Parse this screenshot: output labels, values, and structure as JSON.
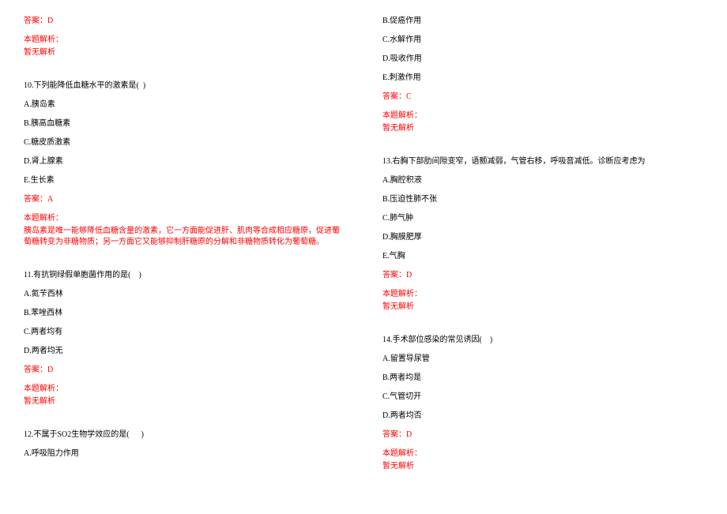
{
  "colors": {
    "text": "#000000",
    "answer": "#ff0000",
    "background": "#ffffff"
  },
  "font": {
    "family": "SimSun",
    "size_pt": 10
  },
  "col1": {
    "q9": {
      "answer": "答案：D",
      "expl_label": "本题解析：",
      "expl_body": "暂无解析"
    },
    "q10": {
      "stem": "10.下列能降低血糖水平的激素是(  )",
      "optA": "A.胰岛素",
      "optB": "B.胰高血糖素",
      "optC": "C.糖皮质激素",
      "optD": "D.肾上腺素",
      "optE": "E.生长素",
      "answer": "答案：A",
      "expl_label": "本题解析：",
      "expl_body": "胰岛素是唯一能够降低血糖含量的激素，它一方面能促进肝、肌肉等合成相应糖原，促进葡萄糖转变为非糖物质；另一方面它又能够抑制肝糖原的分解和非糖物质转化为葡萄糖。"
    },
    "q11": {
      "stem": "11.有抗铜绿假单胞菌作用的是(    )",
      "optA": "A.氮苄西林",
      "optB": "B.苯唑西林",
      "optC": "C.两者均有",
      "optD": "D.两者均无",
      "answer": "答案：D",
      "expl_label": "本题解析：",
      "expl_body": "暂无解析"
    },
    "q12": {
      "stem": "12.不属于SO2生物学效应的是(      )",
      "optA": "A.呼吸阻力作用"
    }
  },
  "col2": {
    "q12cont": {
      "optB": "B.促癌作用",
      "optC": "C.水解作用",
      "optD": "D.吸收作用",
      "optE": "E.刺激作用",
      "answer": "答案：C",
      "expl_label": "本题解析：",
      "expl_body": "暂无解析"
    },
    "q13": {
      "stem": "13.右胸下部肋间隙变窄，语颤减弱，气管右移，呼吸音减低。诊断应考虑为",
      "optA": "A.胸腔积液",
      "optB": "B.压迫性肺不张",
      "optC": "C.肺气肿",
      "optD": "D.胸膜肥厚",
      "optE": "E.气胸",
      "answer": "答案：D",
      "expl_label": "本题解析：",
      "expl_body": "暂无解析"
    },
    "q14": {
      "stem": "14.手术部位感染的常见诱因(    )",
      "optA": "A.留置导尿管",
      "optB": "B.两者均是",
      "optC": "C.气管切开",
      "optD": "D.两者均否",
      "answer": "答案：D",
      "expl_label": "本题解析：",
      "expl_body": "暂无解析"
    }
  }
}
